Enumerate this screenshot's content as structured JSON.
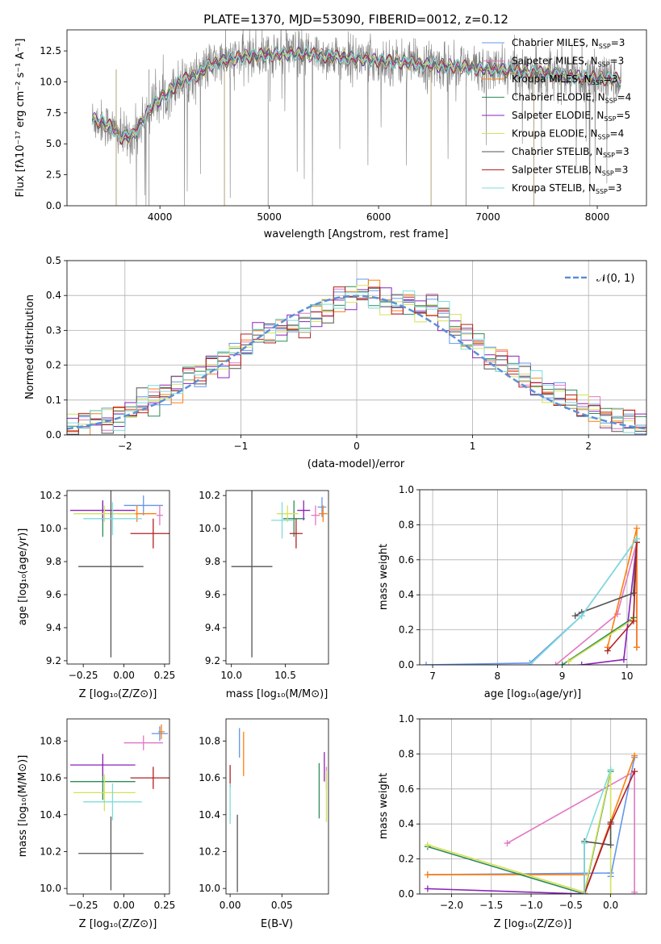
{
  "figure_title": "PLATE=1370, MJD=53090, FIBERID=0012, z=0.12",
  "colors": {
    "Chabrier MILES": "#6495ED",
    "Salpeter MILES": "#E377C2",
    "Kroupa MILES": "#FF7F0E",
    "Chabrier ELODIE": "#2E8B57",
    "Salpeter ELODIE": "#8B22B8",
    "Kroupa ELODIE": "#D4E157",
    "Chabrier STELIB": "#555555",
    "Salpeter STELIB": "#B22222",
    "Kroupa STELIB": "#7FDBDB"
  },
  "chart_data": [
    {
      "id": "spectrum",
      "type": "line",
      "title": "PLATE=1370, MJD=53090, FIBERID=0012, z=0.12",
      "xlabel": "wavelength [Angstrom, rest frame]",
      "ylabel": "Flux [fλ10⁻¹⁷ erg cm⁻² s⁻¹ A⁻¹]",
      "xlim": [
        3150,
        8450
      ],
      "ylim": [
        0,
        14.2
      ],
      "xticks": [
        4000,
        5000,
        6000,
        7000,
        8000
      ],
      "yticks": [
        0.0,
        2.5,
        5.0,
        7.5,
        10.0,
        12.5
      ],
      "legend": [
        "Chabrier MILES, N_SSP=3",
        "Salpeter MILES, N_SSP=3",
        "Kroupa MILES, N_SSP=3",
        "Chabrier ELODIE, N_SSP=4",
        "Salpeter ELODIE, N_SSP=5",
        "Kroupa ELODIE, N_SSP=4",
        "Chabrier STELIB, N_SSP=3",
        "Salpeter STELIB, N_SSP=3",
        "Kroupa STELIB, N_SSP=3"
      ],
      "legend_names": [
        "Chabrier MILES",
        "Salpeter MILES",
        "Kroupa MILES",
        "Chabrier ELODIE",
        "Salpeter ELODIE",
        "Kroupa ELODIE",
        "Chabrier STELIB",
        "Salpeter STELIB",
        "Kroupa STELIB"
      ],
      "legend_placement": "upper right",
      "data_continuum": [
        [
          3380,
          7.0
        ],
        [
          3450,
          6.8
        ],
        [
          3550,
          6.4
        ],
        [
          3650,
          5.5
        ],
        [
          3750,
          5.6
        ],
        [
          3850,
          7.0
        ],
        [
          3950,
          8.3
        ],
        [
          4050,
          8.9
        ],
        [
          4150,
          9.8
        ],
        [
          4250,
          10.3
        ],
        [
          4350,
          10.6
        ],
        [
          4450,
          11.3
        ],
        [
          4550,
          11.6
        ],
        [
          4650,
          11.8
        ],
        [
          4750,
          12.0
        ],
        [
          4850,
          12.1
        ],
        [
          5000,
          12.2
        ],
        [
          5200,
          12.3
        ],
        [
          5400,
          12.2
        ],
        [
          5600,
          12.0
        ],
        [
          5800,
          11.9
        ],
        [
          6000,
          11.7
        ],
        [
          6200,
          11.6
        ],
        [
          6400,
          11.4
        ],
        [
          6600,
          11.3
        ],
        [
          6800,
          11.2
        ],
        [
          7000,
          11.0
        ],
        [
          7200,
          10.9
        ],
        [
          7400,
          10.8
        ],
        [
          7600,
          10.6
        ],
        [
          7800,
          10.4
        ],
        [
          8000,
          10.3
        ],
        [
          8200,
          10.2
        ]
      ],
      "model_start": 3380,
      "model_end": 8220
    },
    {
      "id": "residuals",
      "type": "histogram",
      "xlabel": "(data-model)/error",
      "ylabel": "Normed distribution",
      "xlim": [
        -2.5,
        2.5
      ],
      "ylim": [
        0,
        0.5
      ],
      "xticks": [
        -2,
        -1,
        0,
        1,
        2
      ],
      "yticks": [
        0.0,
        0.1,
        0.2,
        0.3,
        0.4,
        0.5
      ],
      "grid": true,
      "gaussian_label": "N(0,1)",
      "gaussian_label_prefix": "𝒩",
      "gaussian_label_suffix": "(0, 1)",
      "bin_edges": [
        -2.5,
        -2.4,
        -2.3,
        -2.2,
        -2.1,
        -2.0,
        -1.9,
        -1.8,
        -1.7,
        -1.6,
        -1.5,
        -1.4,
        -1.3,
        -1.2,
        -1.1,
        -1.0,
        -0.9,
        -0.8,
        -0.7,
        -0.6,
        -0.5,
        -0.4,
        -0.3,
        -0.2,
        -0.1,
        0.0,
        0.1,
        0.2,
        0.3,
        0.4,
        0.5,
        0.6,
        0.7,
        0.8,
        0.9,
        1.0,
        1.1,
        1.2,
        1.3,
        1.4,
        1.5,
        1.6,
        1.7,
        1.8,
        1.9,
        2.0,
        2.1,
        2.2,
        2.3,
        2.4,
        2.5
      ],
      "base_counts": [
        0.03,
        0.035,
        0.045,
        0.04,
        0.05,
        0.06,
        0.09,
        0.1,
        0.12,
        0.14,
        0.17,
        0.17,
        0.2,
        0.21,
        0.23,
        0.25,
        0.29,
        0.29,
        0.3,
        0.32,
        0.32,
        0.34,
        0.36,
        0.38,
        0.4,
        0.41,
        0.4,
        0.38,
        0.37,
        0.38,
        0.36,
        0.37,
        0.34,
        0.31,
        0.28,
        0.26,
        0.22,
        0.21,
        0.19,
        0.17,
        0.14,
        0.13,
        0.11,
        0.09,
        0.08,
        0.07,
        0.05,
        0.05,
        0.04,
        0.03
      ]
    },
    {
      "id": "age_vs_Z",
      "type": "errorbar",
      "xlabel": "Z [log₁₀(Z/Z⊙)]",
      "ylabel": "age  [log₁₀(age/yr)]",
      "xlim": [
        -0.35,
        0.28
      ],
      "ylim": [
        9.18,
        10.23
      ],
      "xticks": [
        -0.25,
        0.0,
        0.25
      ],
      "xticklabels": [
        "−0.25",
        "0.00",
        "0.25"
      ],
      "yticks": [
        9.2,
        9.4,
        9.6,
        9.8,
        10.0,
        10.2
      ],
      "points": [
        {
          "model": "Chabrier MILES",
          "x": 0.12,
          "xerr": 0.12,
          "y": 10.14,
          "yerr": 0.06
        },
        {
          "model": "Salpeter MILES",
          "x": 0.22,
          "xerr": 0.02,
          "y": 10.08,
          "yerr": 0.06
        },
        {
          "model": "Kroupa MILES",
          "x": 0.08,
          "xerr": 0.12,
          "y": 10.09,
          "yerr": 0.05
        },
        {
          "model": "Chabrier ELODIE",
          "x": -0.13,
          "xerr": 0.01,
          "y": 10.06,
          "yerr": 0.11
        },
        {
          "model": "Salpeter ELODIE",
          "x": -0.13,
          "xerr": 0.2,
          "y": 10.11,
          "yerr": 0.06
        },
        {
          "model": "Kroupa ELODIE",
          "x": -0.12,
          "xerr": 0.19,
          "y": 10.09,
          "yerr": 0.05
        },
        {
          "model": "Chabrier STELIB",
          "x": -0.08,
          "xerr": 0.2,
          "y": 9.77,
          "yerr": 0.55
        },
        {
          "model": "Salpeter STELIB",
          "x": 0.18,
          "xerr": 0.14,
          "y": 9.97,
          "yerr": 0.09
        },
        {
          "model": "Kroupa STELIB",
          "x": -0.07,
          "xerr": 0.18,
          "y": 10.06,
          "yerr": 0.1
        }
      ]
    },
    {
      "id": "age_vs_mass",
      "type": "errorbar",
      "xlabel": "mass [log₁₀(M/M⊙)]",
      "ylabel": "",
      "xlim": [
        9.95,
        10.9
      ],
      "ylim": [
        9.18,
        10.23
      ],
      "xticks": [
        10.0,
        10.5
      ],
      "xticklabels": [
        "10.0",
        "10.5"
      ],
      "yticks": [
        9.2,
        9.4,
        9.6,
        9.8,
        10.0,
        10.2
      ],
      "points": [
        {
          "model": "Chabrier MILES",
          "x": 10.84,
          "xerr": 0.04,
          "y": 10.13,
          "yerr": 0.06
        },
        {
          "model": "Salpeter MILES",
          "x": 10.78,
          "xerr": 0.04,
          "y": 10.08,
          "yerr": 0.06
        },
        {
          "model": "Kroupa MILES",
          "x": 10.85,
          "xerr": 0.04,
          "y": 10.09,
          "yerr": 0.05
        },
        {
          "model": "Chabrier ELODIE",
          "x": 10.58,
          "xerr": 0.1,
          "y": 10.06,
          "yerr": 0.11
        },
        {
          "model": "Salpeter ELODIE",
          "x": 10.67,
          "xerr": 0.06,
          "y": 10.11,
          "yerr": 0.06
        },
        {
          "model": "Kroupa ELODIE",
          "x": 10.52,
          "xerr": 0.1,
          "y": 10.09,
          "yerr": 0.05
        },
        {
          "model": "Chabrier STELIB",
          "x": 10.19,
          "xerr": 0.19,
          "y": 9.77,
          "yerr": 0.55
        },
        {
          "model": "Salpeter STELIB",
          "x": 10.6,
          "xerr": 0.06,
          "y": 9.97,
          "yerr": 0.09
        },
        {
          "model": "Kroupa STELIB",
          "x": 10.47,
          "xerr": 0.1,
          "y": 10.05,
          "yerr": 0.11
        }
      ]
    },
    {
      "id": "massweight_vs_age",
      "type": "line",
      "xlabel": "age  [log₁₀(age/yr)]",
      "ylabel": "mass weight",
      "xlim": [
        6.8,
        10.3
      ],
      "ylim": [
        0,
        1
      ],
      "xticks": [
        7,
        8,
        9,
        10
      ],
      "yticks": [
        0.0,
        0.2,
        0.4,
        0.6,
        0.8,
        1.0
      ],
      "grid": true,
      "series": [
        {
          "model": "Chabrier MILES",
          "x": [
            6.9,
            8.5,
            9.3,
            10.15,
            10.15
          ],
          "y": [
            0.0,
            0.01,
            0.28,
            0.72,
            0.1
          ]
        },
        {
          "model": "Salpeter MILES",
          "x": [
            8.9,
            9.85,
            10.15,
            10.15
          ],
          "y": [
            0.0,
            0.29,
            0.7,
            0.1
          ]
        },
        {
          "model": "Kroupa MILES",
          "x": [
            9.7,
            10.15,
            10.15
          ],
          "y": [
            0.1,
            0.78,
            0.1
          ]
        },
        {
          "model": "Chabrier ELODIE",
          "x": [
            9.0,
            10.1,
            10.15
          ],
          "y": [
            0.0,
            0.27,
            0.72
          ]
        },
        {
          "model": "Salpeter ELODIE",
          "x": [
            9.3,
            9.95,
            10.15
          ],
          "y": [
            0.0,
            0.03,
            0.7
          ]
        },
        {
          "model": "Kroupa ELODIE",
          "x": [
            9.1,
            10.1,
            10.15
          ],
          "y": [
            0.02,
            0.26,
            0.72
          ]
        },
        {
          "model": "Chabrier STELIB",
          "x": [
            9.2,
            9.3,
            10.1,
            10.15
          ],
          "y": [
            0.28,
            0.3,
            0.41,
            0.7
          ]
        },
        {
          "model": "Salpeter STELIB",
          "x": [
            9.7,
            10.1,
            10.15
          ],
          "y": [
            0.08,
            0.25,
            0.7
          ]
        },
        {
          "model": "Kroupa STELIB",
          "x": [
            8.5,
            9.3,
            10.15
          ],
          "y": [
            0.0,
            0.28,
            0.72
          ]
        }
      ]
    },
    {
      "id": "mass_vs_Z",
      "type": "errorbar",
      "xlabel": "Z [log₁₀(Z/Z⊙)]",
      "ylabel": "mass [log₁₀(M/M⊙)]",
      "xlim": [
        -0.35,
        0.28
      ],
      "ylim": [
        9.97,
        10.92
      ],
      "xticks": [
        -0.25,
        0.0,
        0.25
      ],
      "xticklabels": [
        "−0.25",
        "0.00",
        "0.25"
      ],
      "yticks": [
        10.0,
        10.2,
        10.4,
        10.6,
        10.8
      ],
      "points": [
        {
          "model": "Chabrier MILES",
          "x": 0.22,
          "xerr": 0.05,
          "y": 10.84,
          "yerr": 0.04
        },
        {
          "model": "Salpeter MILES",
          "x": 0.12,
          "xerr": 0.12,
          "y": 10.79,
          "yerr": 0.04
        },
        {
          "model": "Kroupa MILES",
          "x": 0.23,
          "xerr": 0.02,
          "y": 10.85,
          "yerr": 0.04
        },
        {
          "model": "Chabrier ELODIE",
          "x": -0.13,
          "xerr": 0.2,
          "y": 10.58,
          "yerr": 0.1
        },
        {
          "model": "Salpeter ELODIE",
          "x": -0.13,
          "xerr": 0.2,
          "y": 10.67,
          "yerr": 0.06
        },
        {
          "model": "Kroupa ELODIE",
          "x": -0.12,
          "xerr": 0.19,
          "y": 10.52,
          "yerr": 0.1
        },
        {
          "model": "Chabrier STELIB",
          "x": -0.08,
          "xerr": 0.2,
          "y": 10.19,
          "yerr": 0.2
        },
        {
          "model": "Salpeter STELIB",
          "x": 0.18,
          "xerr": 0.14,
          "y": 10.6,
          "yerr": 0.06
        },
        {
          "model": "Kroupa STELIB",
          "x": -0.07,
          "xerr": 0.18,
          "y": 10.47,
          "yerr": 0.1
        }
      ]
    },
    {
      "id": "mass_vs_ebv",
      "type": "errorbar",
      "xlabel": "E(B-V)",
      "ylabel": "",
      "xlim": [
        -0.004,
        0.095
      ],
      "ylim": [
        9.97,
        10.92
      ],
      "xticks": [
        0.0,
        0.05
      ],
      "xticklabels": [
        "0.00",
        "0.05"
      ],
      "yticks": [
        10.0,
        10.2,
        10.4,
        10.6,
        10.8
      ],
      "points": [
        {
          "model": "Chabrier MILES",
          "x": 0.009,
          "xerr": 0.0,
          "y": 10.79,
          "yerr": 0.08
        },
        {
          "model": "Salpeter MILES",
          "x": 0.093,
          "xerr": 0.0,
          "y": 10.6,
          "yerr": 0.06
        },
        {
          "model": "Kroupa MILES",
          "x": 0.013,
          "xerr": 0.0,
          "y": 10.73,
          "yerr": 0.12
        },
        {
          "model": "Chabrier ELODIE",
          "x": 0.086,
          "xerr": 0.0,
          "y": 10.53,
          "yerr": 0.15
        },
        {
          "model": "Salpeter ELODIE",
          "x": 0.091,
          "xerr": 0.0,
          "y": 10.66,
          "yerr": 0.08
        },
        {
          "model": "Kroupa ELODIE",
          "x": 0.093,
          "xerr": 0.0,
          "y": 10.5,
          "yerr": 0.14
        },
        {
          "model": "Chabrier STELIB",
          "x": 0.007,
          "xerr": 0.0,
          "y": 10.19,
          "yerr": 0.21
        },
        {
          "model": "Salpeter STELIB",
          "x": 0.0,
          "xerr": 0.0,
          "y": 10.61,
          "yerr": 0.06
        },
        {
          "model": "Kroupa STELIB",
          "x": 0.0,
          "xerr": 0.0,
          "y": 10.46,
          "yerr": 0.11
        }
      ]
    },
    {
      "id": "massweight_vs_Z",
      "type": "line",
      "xlabel": "Z [log₁₀(Z/Z⊙)]",
      "ylabel": "mass weight",
      "xlim": [
        -2.4,
        0.45
      ],
      "ylim": [
        0,
        1
      ],
      "xticks": [
        -2.0,
        -1.5,
        -1.0,
        -0.5,
        0.0
      ],
      "xticklabels": [
        "−2.0",
        "−1.5",
        "−1.0",
        "−0.5",
        "0.0"
      ],
      "yticks": [
        0.0,
        0.2,
        0.4,
        0.6,
        0.8,
        1.0
      ],
      "grid": true,
      "series": [
        {
          "model": "Chabrier MILES",
          "x": [
            -2.3,
            0.0,
            0.0,
            0.3
          ],
          "y": [
            0.11,
            0.12,
            0.1,
            0.78
          ]
        },
        {
          "model": "Salpeter MILES",
          "x": [
            -1.3,
            0.3,
            0.3
          ],
          "y": [
            0.29,
            0.7,
            0.01
          ]
        },
        {
          "model": "Kroupa MILES",
          "x": [
            -2.3,
            -0.33,
            -0.33,
            0.3
          ],
          "y": [
            0.11,
            0.11,
            0.0,
            0.79
          ]
        },
        {
          "model": "Chabrier ELODIE",
          "x": [
            -2.3,
            -0.33,
            0.0
          ],
          "y": [
            0.27,
            0.0,
            0.7
          ]
        },
        {
          "model": "Salpeter ELODIE",
          "x": [
            -2.3,
            -0.33,
            0.0
          ],
          "y": [
            0.03,
            0.0,
            0.4
          ]
        },
        {
          "model": "Kroupa ELODIE",
          "x": [
            -2.3,
            -0.33,
            0.0,
            0.0
          ],
          "y": [
            0.28,
            0.01,
            0.71,
            0.0
          ]
        },
        {
          "model": "Chabrier STELIB",
          "x": [
            -0.33,
            -0.33,
            0.0,
            0.0
          ],
          "y": [
            0.0,
            0.3,
            0.28,
            0.41
          ]
        },
        {
          "model": "Salpeter STELIB",
          "x": [
            -0.33,
            0.0,
            0.3
          ],
          "y": [
            0.0,
            0.4,
            0.7
          ]
        },
        {
          "model": "Kroupa STELIB",
          "x": [
            -0.33,
            -0.33,
            0.0
          ],
          "y": [
            0.0,
            0.29,
            0.71
          ]
        }
      ]
    }
  ]
}
